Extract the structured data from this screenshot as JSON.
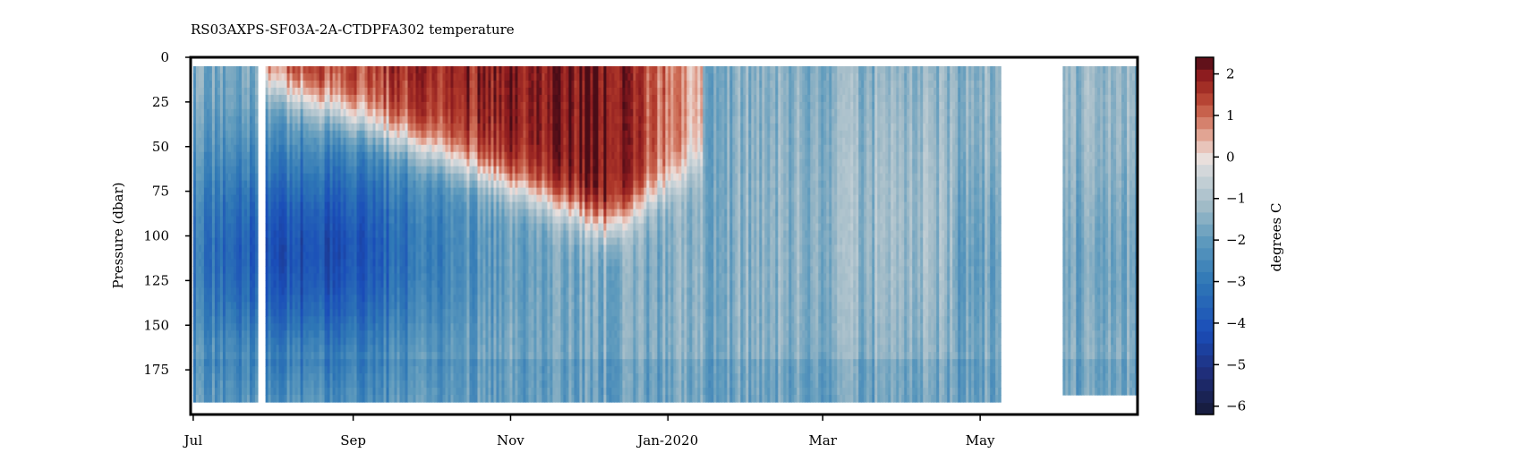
{
  "chart_data": {
    "type": "heatmap",
    "title": "RS03AXPS-SF03A-2A-CTDPFA302 temperature",
    "xlabel": "",
    "ylabel": "Pressure (dbar)",
    "y_axis_inverted": true,
    "ylim": [
      200,
      0
    ],
    "yticks": [
      0,
      25,
      50,
      75,
      100,
      125,
      150,
      175
    ],
    "ytick_labels": [
      "0",
      "25",
      "50",
      "75",
      "100",
      "125",
      "150",
      "175"
    ],
    "xlim": [
      "2019-06-30",
      "2020-07-01"
    ],
    "xticks": [
      {
        "date": "2019-07-01",
        "label": "Jul"
      },
      {
        "date": "2019-09-01",
        "label": "Sep"
      },
      {
        "date": "2019-11-01",
        "label": "Nov"
      },
      {
        "date": "2020-01-01",
        "label": "Jan-2020"
      },
      {
        "date": "2020-03-01",
        "label": "Mar"
      },
      {
        "date": "2020-05-01",
        "label": "May"
      }
    ],
    "colorbar": {
      "label": "degrees C",
      "range": [
        -6.2,
        2.4
      ],
      "ticks": [
        2,
        1,
        0,
        -1,
        -2,
        -3,
        -4,
        -5,
        -6
      ],
      "tick_labels": [
        "2",
        "1",
        "0",
        "−1",
        "−2",
        "−3",
        "−4",
        "−5",
        "−6"
      ],
      "colormap": "balance",
      "colors_top_to_bottom": [
        "#4a0c17",
        "#8b1a1e",
        "#b0392b",
        "#cd6c55",
        "#e3a898",
        "#ece0dc",
        "#cdd5d9",
        "#9fbac7",
        "#5f9bbd",
        "#2f78b6",
        "#1a4db8",
        "#1f2e7a",
        "#161a38"
      ]
    },
    "data_segments": [
      {
        "start": "2019-07-01",
        "end": "2019-07-26",
        "bottom_pressure": 190
      },
      {
        "start": "2019-07-29",
        "end": "2020-05-09",
        "bottom_pressure": 191
      },
      {
        "start": "2020-06-02",
        "end": "2020-07-01",
        "bottom_pressure": 189
      }
    ],
    "warm_layer": {
      "start": "2019-07-29",
      "peak": "2019-12-10",
      "end": "2020-01-15",
      "max_depth_dbar": 95,
      "peak_temp_c": 2.2
    },
    "cold_core": {
      "center": "2019-08-15",
      "pressure_dbar": 110,
      "min_temp_c": -4.5
    }
  }
}
